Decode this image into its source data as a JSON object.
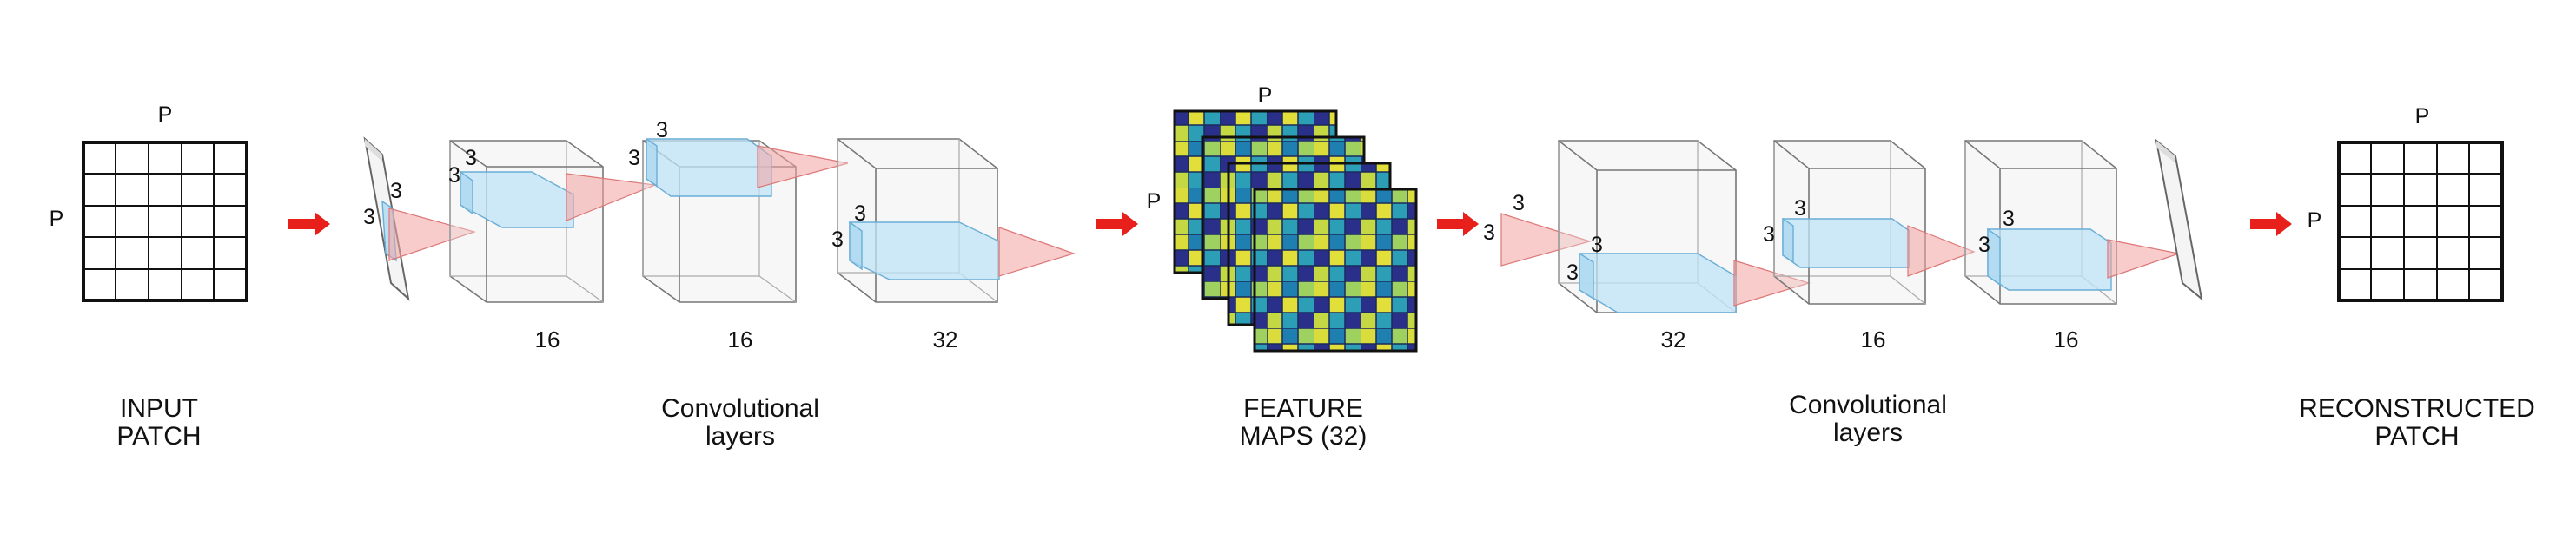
{
  "input": {
    "top_label": "P",
    "side_label": "P",
    "caption_line1": "INPUT",
    "caption_line2": "PATCH"
  },
  "encoder": {
    "caption_line1": "Convolutional",
    "caption_line2": "layers",
    "kernel_labels": [
      "3",
      "3",
      "3",
      "3",
      "3",
      "3",
      "3",
      "3"
    ],
    "depths": [
      "16",
      "16",
      "32"
    ]
  },
  "feature_maps": {
    "top_label": "P",
    "side_label": "P",
    "caption_line1": "FEATURE",
    "caption_line2": "MAPS (32)"
  },
  "decoder": {
    "caption_line1": "Convolutional",
    "caption_line2": "layers",
    "kernel_labels": [
      "3",
      "3",
      "3",
      "3",
      "3",
      "3",
      "3",
      "3"
    ],
    "depths": [
      "32",
      "16",
      "16"
    ]
  },
  "output": {
    "top_label": "P",
    "side_label": "P",
    "caption_line1": "RECONSTRUCTED",
    "caption_line2": "PATCH"
  },
  "colors": {
    "arrow": "#e8201c",
    "kernel_cone": "#f4a3a3",
    "feature_block": "#bfe3f6",
    "heatmap_low": "#2a2f8a",
    "heatmap_mid": "#2c9fb6",
    "heatmap_high": "#d9dc3a"
  }
}
